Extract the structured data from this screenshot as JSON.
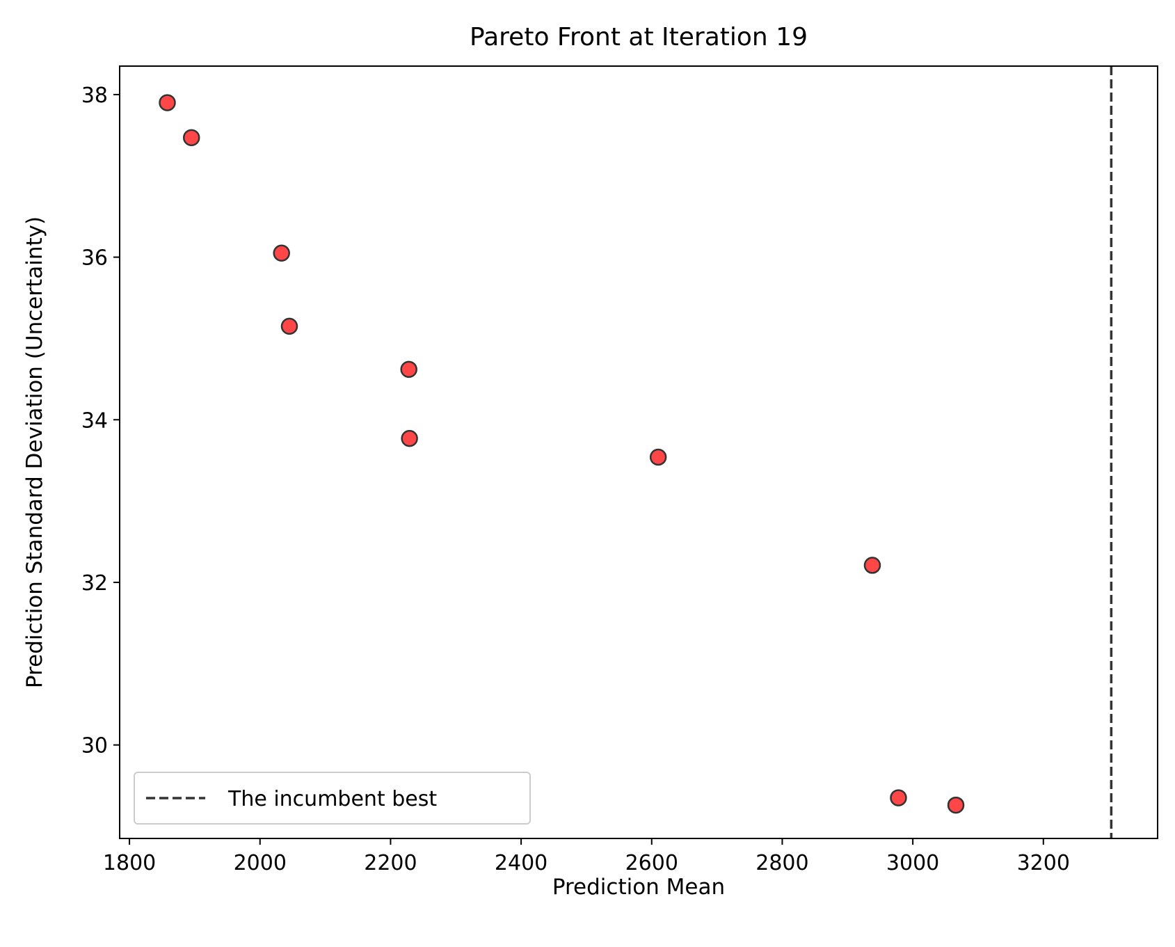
{
  "chart_data": {
    "type": "scatter",
    "title": "Pareto Front at Iteration 19",
    "xlabel": "Prediction Mean",
    "ylabel": "Prediction Standard Deviation (Uncertainty)",
    "xlim": [
      1785,
      3375
    ],
    "ylim": [
      28.85,
      38.35
    ],
    "xticks": [
      1800,
      2000,
      2200,
      2400,
      2600,
      2800,
      3000,
      3200
    ],
    "yticks": [
      30,
      32,
      34,
      36,
      38
    ],
    "grid": false,
    "series": [
      {
        "color": "#ff0000",
        "edge_color": "#333333",
        "points": [
          {
            "x": 1858,
            "y": 37.9
          },
          {
            "x": 1895,
            "y": 37.47
          },
          {
            "x": 2033,
            "y": 36.05
          },
          {
            "x": 2045,
            "y": 35.15
          },
          {
            "x": 2228,
            "y": 34.62
          },
          {
            "x": 2229,
            "y": 33.77
          },
          {
            "x": 2610,
            "y": 33.54
          },
          {
            "x": 2938,
            "y": 32.21
          },
          {
            "x": 2978,
            "y": 29.35
          },
          {
            "x": 3066,
            "y": 29.26
          }
        ]
      }
    ],
    "reference_line": {
      "orientation": "vertical",
      "x": 3304,
      "style": "dashed",
      "color": "#333333",
      "label": "The incumbent best"
    },
    "legend": {
      "placement": "lower-left",
      "entries": [
        "The incumbent best"
      ]
    }
  }
}
